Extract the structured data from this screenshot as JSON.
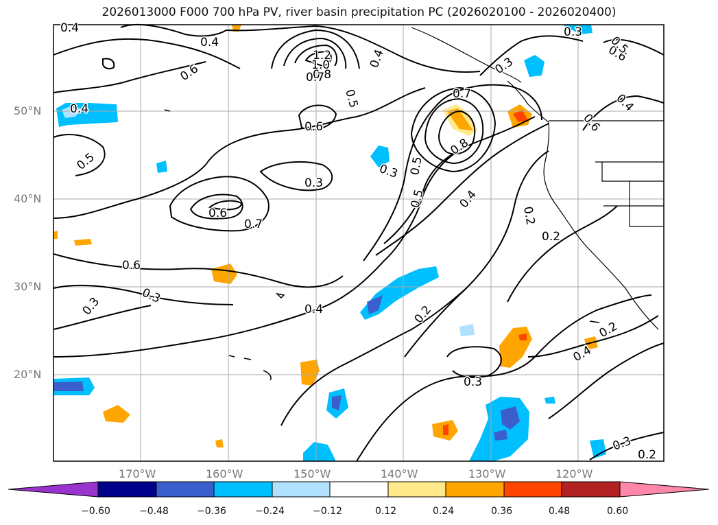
{
  "title": "2026013000 F000 700 hPa PV, river basin precipitation PC (2026020100 - 2026020400)",
  "lat_labels": [
    "50°N",
    "40°N",
    "30°N",
    "20°N"
  ],
  "lon_labels": [
    "170°W",
    "160°W",
    "150°W",
    "140°W",
    "130°W",
    "120°W"
  ],
  "contour_labels": [
    "0.4",
    "0.4",
    "0.6",
    "1.2",
    "1.0",
    "0.8",
    "0.7",
    "0.5",
    "0.4",
    "0.3",
    "0.7",
    "0.4",
    "0.6",
    "0.5",
    "0.4",
    "0.6",
    "0.5",
    "0.6",
    "0.3",
    "0.3",
    "0.5",
    "0.8",
    "0.5",
    "0.6",
    "0.4",
    "0.2",
    "0.2",
    "0.7",
    "0.6",
    "0.3",
    "0.3",
    "0.4",
    "0.2",
    "0.3",
    "0.4",
    "0.2",
    "0.3",
    "0.2",
    "0.3"
  ],
  "colorbar": {
    "tick_labels": [
      "−0.60",
      "−0.48",
      "−0.36",
      "−0.24",
      "−0.12",
      "0.12",
      "0.24",
      "0.36",
      "0.48",
      "0.60"
    ],
    "colors": [
      "#9a32cd",
      "#00008b",
      "#3a5fcd",
      "#00bfff",
      "#b0e2ff",
      "#ffffff",
      "#ffe98a",
      "#ffa500",
      "#ff4500",
      "#b22222",
      "#ff88aa"
    ]
  }
}
